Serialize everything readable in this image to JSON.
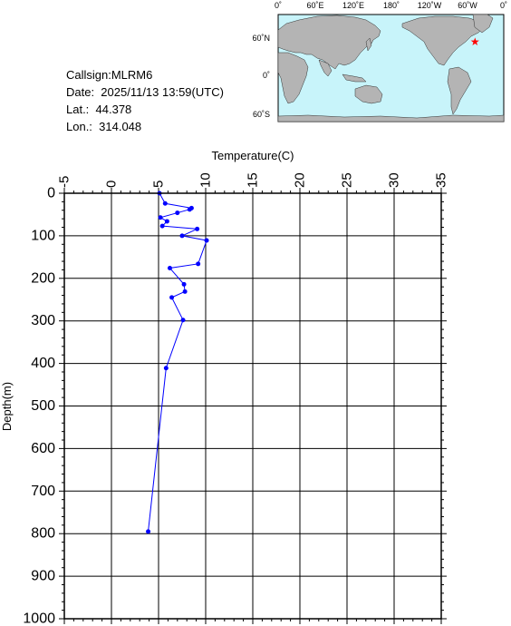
{
  "info": {
    "callsign": "Callsign:MLRM6",
    "date": "Date:  2025/11/13 13:59(UTC)",
    "lat": "Lat.:  44.378",
    "lon": "Lon.:  314.048"
  },
  "map": {
    "top_labels": [
      "0˚",
      "60˚E",
      "120˚E",
      "180˚",
      "120˚W",
      "60˚W",
      "0˚"
    ],
    "left_labels": [
      "60˚N",
      "0˚",
      "60˚S"
    ],
    "ocean_color": "#c8f4fa",
    "land_color": "#b4b4b4",
    "marker": {
      "lon": 314.048,
      "lat": 44.378,
      "color": "#ff0000",
      "icon": "star-icon"
    }
  },
  "chart_data": {
    "type": "line",
    "xlabel": "Temperature(C)",
    "ylabel": "Depth(m)",
    "xlim": [
      -5,
      35
    ],
    "ylim": [
      0,
      1000
    ],
    "y_inverted": true,
    "x_ticks": [
      "-5",
      "0",
      "5",
      "10",
      "15",
      "20",
      "25",
      "30",
      "35"
    ],
    "y_ticks": [
      "0",
      "100",
      "200",
      "300",
      "400",
      "500",
      "600",
      "700",
      "800",
      "900",
      "1000"
    ],
    "grid": true,
    "line_color": "#0000ff",
    "series": [
      {
        "points": [
          {
            "t": 5.1,
            "d": 0
          },
          {
            "t": 5.7,
            "d": 24
          },
          {
            "t": 8.5,
            "d": 35
          },
          {
            "t": 8.3,
            "d": 38
          },
          {
            "t": 7.0,
            "d": 46
          },
          {
            "t": 5.2,
            "d": 57
          },
          {
            "t": 5.9,
            "d": 66
          },
          {
            "t": 5.4,
            "d": 77
          },
          {
            "t": 9.1,
            "d": 84
          },
          {
            "t": 7.5,
            "d": 100
          },
          {
            "t": 10.1,
            "d": 111
          },
          {
            "t": 9.2,
            "d": 166
          },
          {
            "t": 6.2,
            "d": 176
          },
          {
            "t": 7.7,
            "d": 214
          },
          {
            "t": 7.8,
            "d": 231
          },
          {
            "t": 6.4,
            "d": 245
          },
          {
            "t": 7.6,
            "d": 298
          },
          {
            "t": 5.8,
            "d": 411
          },
          {
            "t": 3.9,
            "d": 795
          }
        ]
      }
    ]
  }
}
